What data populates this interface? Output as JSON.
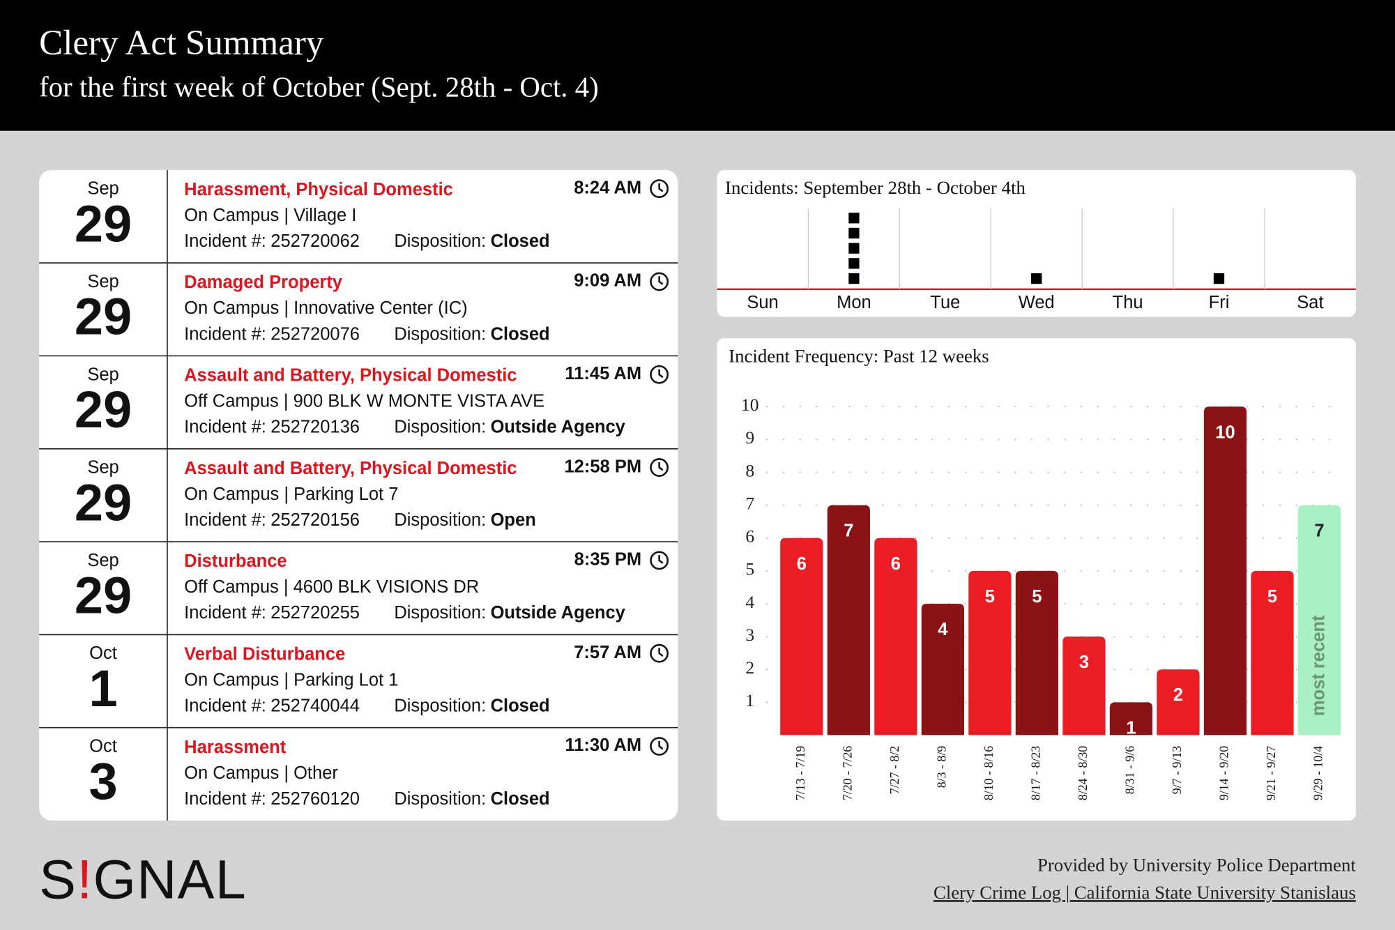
{
  "header": {
    "title": "Clery Act Summary",
    "subtitle": "for the first week of October (Sept. 28th - Oct. 4)"
  },
  "labels": {
    "incident": "Incident #:",
    "disposition": "Disposition:"
  },
  "incidents": [
    {
      "month": "Sep",
      "day": "29",
      "title": "Harassment, Physical Domestic",
      "time": "8:24 AM",
      "location": "On Campus | Village I",
      "number": "252720062",
      "disposition": "Closed"
    },
    {
      "month": "Sep",
      "day": "29",
      "title": "Damaged Property",
      "time": "9:09 AM",
      "location": "On Campus | Innovative Center (IC)",
      "number": "252720076",
      "disposition": "Closed"
    },
    {
      "month": "Sep",
      "day": "29",
      "title": "Assault and Battery, Physical Domestic",
      "time": "11:45 AM",
      "location": "Off Campus | 900 BLK W MONTE VISTA AVE",
      "number": "252720136",
      "disposition": "Outside Agency"
    },
    {
      "month": "Sep",
      "day": "29",
      "title": "Assault and Battery, Physical Domestic",
      "time": "12:58 PM",
      "location": "On Campus | Parking Lot 7",
      "number": "252720156",
      "disposition": "Open"
    },
    {
      "month": "Sep",
      "day": "29",
      "title": "Disturbance",
      "time": "8:35 PM",
      "location": "Off Campus | 4600 BLK VISIONS DR",
      "number": "252720255",
      "disposition": "Outside Agency"
    },
    {
      "month": "Oct",
      "day": "1",
      "title": "Verbal Disturbance",
      "time": "7:57 AM",
      "location": "On Campus | Parking Lot 1",
      "number": "252740044",
      "disposition": "Closed"
    },
    {
      "month": "Oct",
      "day": "3",
      "title": "Harassment",
      "time": "11:30 AM",
      "location": "On Campus | Other",
      "number": "252760120",
      "disposition": "Closed"
    }
  ],
  "chart_data": [
    {
      "type": "dot",
      "title": "Incidents: September 28th - October 4th",
      "categories": [
        "Sun",
        "Mon",
        "Tue",
        "Wed",
        "Thu",
        "Fri",
        "Sat"
      ],
      "values": [
        0,
        5,
        0,
        1,
        0,
        1,
        0
      ],
      "color": "#000000"
    },
    {
      "type": "bar",
      "title": "Incident Frequency: Past 12 weeks",
      "categories": [
        "7/13 - 7/19",
        "7/20 - 7/26",
        "7/27 - 8/2",
        "8/3 - 8/9",
        "8/10 - 8/16",
        "8/17 - 8/23",
        "8/24 - 8/30",
        "8/31 - 9/6",
        "9/7 - 9/13",
        "9/14 - 9/20",
        "9/21 - 9/27",
        "9/29 - 10/4"
      ],
      "values": [
        6,
        7,
        6,
        4,
        5,
        5,
        3,
        1,
        2,
        10,
        5,
        7
      ],
      "colors": [
        "#ec1c24",
        "#8b1215",
        "#ec1c24",
        "#8b1215",
        "#ec1c24",
        "#8b1215",
        "#ec1c24",
        "#8b1215",
        "#ec1c24",
        "#8b1215",
        "#ec1c24",
        "#a9f0c5"
      ],
      "annotation": "most recent",
      "ylim": [
        0,
        11
      ],
      "yticks": [
        1,
        2,
        3,
        4,
        5,
        6,
        7,
        8,
        9,
        10
      ],
      "grid": true
    }
  ],
  "footer": {
    "provider": "Provided by University Police Department",
    "source": "Clery Crime Log | California State University Stanislaus",
    "logo": [
      "S",
      "!",
      "GNAL"
    ]
  }
}
